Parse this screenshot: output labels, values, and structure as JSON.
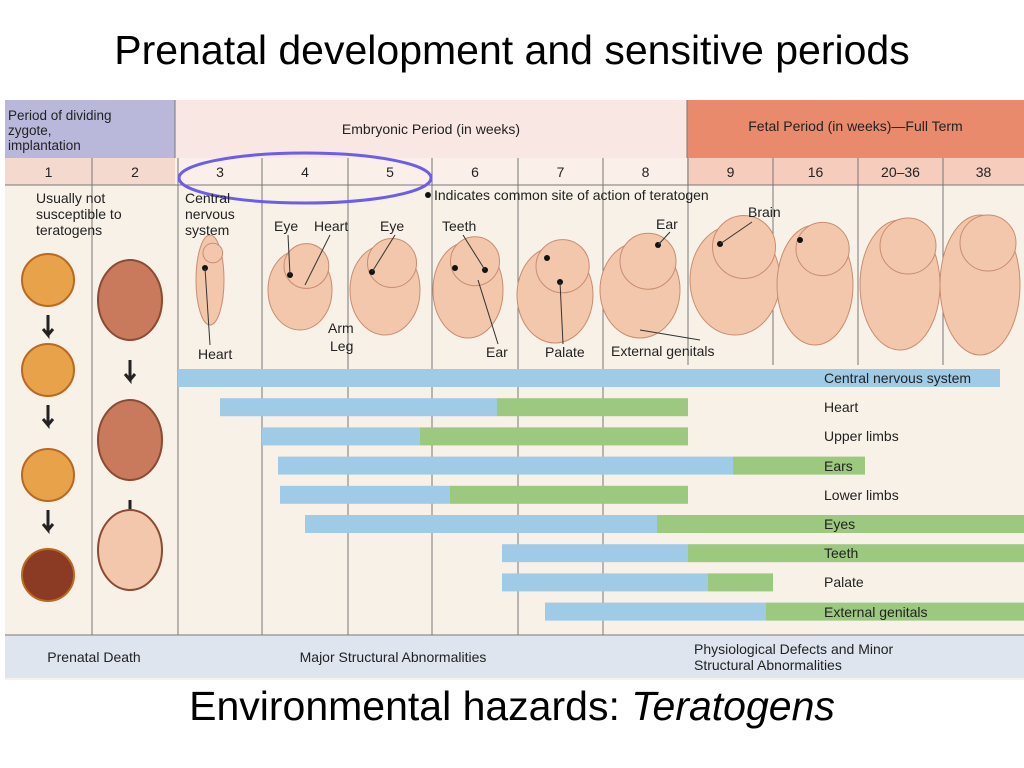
{
  "title": "Prenatal development and sensitive periods",
  "subtitle": {
    "text": "Environmental hazards:",
    "emphasis": "Teratogens"
  },
  "figure": {
    "periods": [
      "Period of dividing zygote, implantation",
      "Embryonic Period (in weeks)",
      "Fetal Period (in weeks)—Full Term"
    ],
    "weeks": [
      "1",
      "2",
      "3",
      "4",
      "5",
      "6",
      "7",
      "8",
      "9",
      "16",
      "20–36",
      "38"
    ],
    "notes": {
      "not_susceptible": "Usually not susceptible to teratogens",
      "cns": "Central nervous system",
      "legend": "Indicates common site of action of teratogen"
    },
    "labels": [
      "Eye",
      "Heart",
      "Eye",
      "Teeth",
      "Ear",
      "Brain",
      "Heart",
      "Arm",
      "Leg",
      "Ear",
      "Palate",
      "External genitals"
    ],
    "structures": [
      "Central nervous system",
      "Heart",
      "Upper limbs",
      "Ears",
      "Lower limbs",
      "Eyes",
      "Teeth",
      "Palate",
      "External genitals"
    ],
    "outcomes": [
      "Prenatal Death",
      "Major Structural Abnormalities",
      "Physiological Defects and Minor Structural Abnormalities"
    ]
  }
}
